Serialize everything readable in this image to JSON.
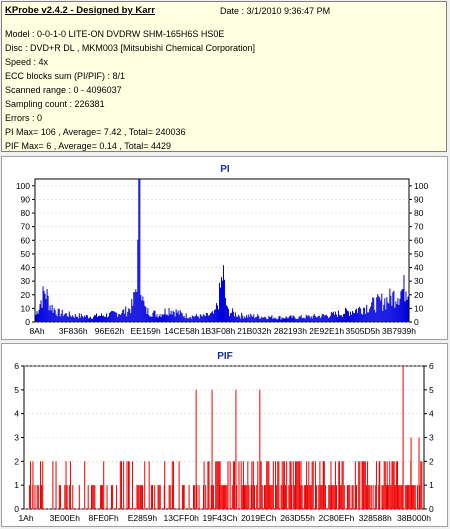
{
  "header": {
    "app_title": "KProbe v2.4.2 - Designed by Karr",
    "date": "Date : 3/1/2010 9:36:47 PM"
  },
  "info": [
    "Model : 0-0-1-0 LITE-ON DVDRW SHM-165H6S HS0E",
    "Disc : DVD+R DL , MKM003 [Mitsubishi Chemical Corporation]",
    "Speed : 4x",
    "ECC blocks sum (PI/PIF) : 8/1",
    "Scanned range : 0 - 4096037",
    "Sampling count : 226381",
    "Errors : 0",
    "PI Max= 106 , Average= 7.42 , Total= 240036",
    "PIF Max= 6 , Average= 0.14 , Total= 4429"
  ],
  "chart_data": [
    {
      "type": "area",
      "title": "PI",
      "ylim": [
        0,
        105
      ],
      "yticks": [
        "0",
        "10",
        "20",
        "30",
        "40",
        "50",
        "60",
        "70",
        "80",
        "90",
        "100"
      ],
      "xticks": [
        "8Ah",
        "3F836h",
        "96E62h",
        "EE159h",
        "14CE58h",
        "1B3F08h",
        "21B032h",
        "282193h",
        "2E92E1h",
        "3505D5h",
        "3B7939h"
      ],
      "series_color": "#0000e0",
      "bars": [
        [
          0.0,
          8
        ],
        [
          0.012,
          22
        ],
        [
          0.025,
          34
        ],
        [
          0.038,
          18
        ],
        [
          0.06,
          10
        ],
        [
          0.1,
          7
        ],
        [
          0.15,
          6
        ],
        [
          0.2,
          8
        ],
        [
          0.245,
          12
        ],
        [
          0.26,
          18
        ],
        [
          0.268,
          35
        ],
        [
          0.273,
          62
        ],
        [
          0.277,
          106
        ],
        [
          0.281,
          60
        ],
        [
          0.286,
          25
        ],
        [
          0.295,
          12
        ],
        [
          0.33,
          8
        ],
        [
          0.36,
          14
        ],
        [
          0.4,
          7
        ],
        [
          0.45,
          6
        ],
        [
          0.48,
          9
        ],
        [
          0.49,
          22
        ],
        [
          0.497,
          38
        ],
        [
          0.503,
          55
        ],
        [
          0.508,
          30
        ],
        [
          0.515,
          12
        ],
        [
          0.55,
          7
        ],
        [
          0.6,
          6
        ],
        [
          0.65,
          5
        ],
        [
          0.7,
          5
        ],
        [
          0.75,
          6
        ],
        [
          0.8,
          8
        ],
        [
          0.85,
          12
        ],
        [
          0.9,
          18
        ],
        [
          0.95,
          25
        ],
        [
          0.99,
          36
        ],
        [
          1.0,
          42
        ]
      ]
    },
    {
      "type": "bar",
      "title": "PIF",
      "ylim": [
        0,
        6
      ],
      "yticks": [
        "0",
        "1",
        "2",
        "3",
        "4",
        "5",
        "6"
      ],
      "xticks": [
        "1Ah",
        "3E00Eh",
        "8FE0Fh",
        "E2859h",
        "13CFF0h",
        "19F43Ch",
        "2019ECh",
        "263D55h",
        "2C80EFh",
        "328588h",
        "38B000h"
      ],
      "series_color": "#ee0000",
      "spikes": [
        [
          0.02,
          2
        ],
        [
          0.04,
          1
        ],
        [
          0.07,
          2
        ],
        [
          0.1,
          1
        ],
        [
          0.12,
          1
        ],
        [
          0.15,
          2
        ],
        [
          0.17,
          1
        ],
        [
          0.19,
          1
        ],
        [
          0.23,
          1
        ],
        [
          0.26,
          2
        ],
        [
          0.29,
          1
        ],
        [
          0.32,
          1
        ],
        [
          0.35,
          1
        ],
        [
          0.37,
          2
        ],
        [
          0.4,
          1
        ],
        [
          0.43,
          5
        ],
        [
          0.45,
          2
        ],
        [
          0.47,
          5
        ],
        [
          0.49,
          1
        ],
        [
          0.51,
          2
        ],
        [
          0.53,
          5
        ],
        [
          0.55,
          1
        ],
        [
          0.57,
          2
        ],
        [
          0.59,
          5
        ],
        [
          0.61,
          2
        ],
        [
          0.63,
          1
        ],
        [
          0.65,
          2
        ],
        [
          0.67,
          1
        ],
        [
          0.69,
          2
        ],
        [
          0.71,
          1
        ],
        [
          0.73,
          2
        ],
        [
          0.75,
          2
        ],
        [
          0.77,
          1
        ],
        [
          0.79,
          2
        ],
        [
          0.81,
          1
        ],
        [
          0.83,
          2
        ],
        [
          0.85,
          2
        ],
        [
          0.87,
          1
        ],
        [
          0.89,
          2
        ],
        [
          0.91,
          2
        ],
        [
          0.93,
          1
        ],
        [
          0.95,
          6
        ],
        [
          0.97,
          3
        ],
        [
          0.99,
          3
        ]
      ]
    }
  ]
}
